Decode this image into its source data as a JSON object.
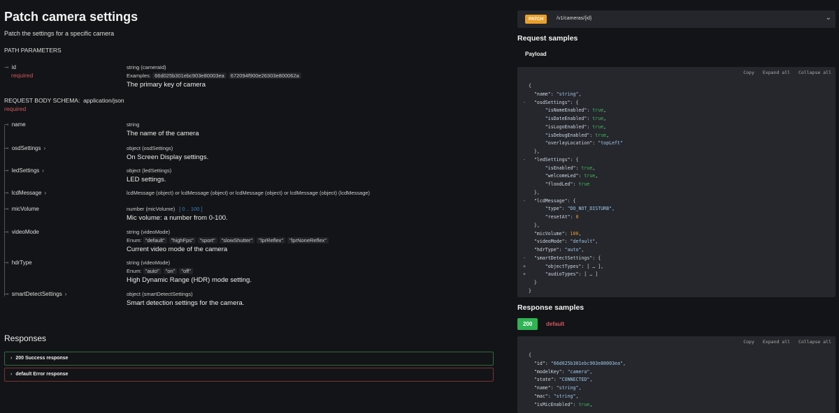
{
  "title": "Patch camera settings",
  "subtitle": "Patch the settings for a specific camera",
  "path_params_label": "PATH PARAMETERS",
  "id_param": {
    "name": "id",
    "required": "required",
    "type": "string (cameraId)",
    "examples_label": "Examples:",
    "examples": [
      "66d025b301ebc903e80003ea",
      "672094f900e26303e800062a"
    ],
    "desc": "The primary key of camera"
  },
  "body_label": "REQUEST BODY SCHEMA:",
  "body_type": "application/json",
  "body_required": "required",
  "params": [
    {
      "name": "name",
      "chev": "",
      "type": "string",
      "desc": "The name of the camera"
    },
    {
      "name": "osdSettings",
      "chev": "›",
      "type": "object (osdSettings)",
      "desc": "On Screen Display settings."
    },
    {
      "name": "ledSettings",
      "chev": "›",
      "type": "object (ledSettings)",
      "desc": "LED settings."
    },
    {
      "name": "lcdMessage",
      "chev": "›",
      "type": "lcdMessage (object) or lcdMessage (object) or lcdMessage (object) or lcdMessage (object) (lcdMessage)",
      "desc": ""
    },
    {
      "name": "micVolume",
      "chev": "",
      "type": "number (micVolume)",
      "range": "[ 0 .. 100 ]",
      "desc": "Mic volume: a number from 0-100."
    },
    {
      "name": "videoMode",
      "chev": "",
      "type": "string (videoMode)",
      "enum_label": "Enum:",
      "enum": [
        "\"default\"",
        "\"highFps\"",
        "\"sport\"",
        "\"slowShutter\"",
        "\"lprReflex\"",
        "\"lprNoneReflex\""
      ],
      "desc": "Current video mode of the camera"
    },
    {
      "name": "hdrType",
      "chev": "",
      "type": "string (videoMode)",
      "enum_label": "Enum:",
      "enum": [
        "\"auto\"",
        "\"on\"",
        "\"off\""
      ],
      "desc": "High Dynamic Range (HDR) mode setting."
    },
    {
      "name": "smartDetectSettings",
      "chev": "›",
      "type": "object (smartDetectSettings)",
      "desc": "Smart detection settings for the camera."
    }
  ],
  "responses_title": "Responses",
  "responses": [
    {
      "label": "200 Success response",
      "color": "#2f6b3f"
    },
    {
      "label": "default Error response",
      "color": "#7a3336"
    }
  ],
  "operation": {
    "method": "PATCH",
    "path": "/v1/cameras/{id}"
  },
  "request_samples_title": "Request samples",
  "payload_label": "Payload",
  "tools": [
    "Copy",
    "Expand all",
    "Collapse all"
  ],
  "request_code": [
    {
      "g": "",
      "i": 0,
      "p": "{"
    },
    {
      "g": "",
      "i": 1,
      "k": "\"name\"",
      "v": "\"string\"",
      "t": "s",
      "p": ","
    },
    {
      "g": "-",
      "i": 1,
      "k": "\"osdSettings\"",
      "p": ": {"
    },
    {
      "g": "",
      "i": 2,
      "k": "\"isNameEnabled\"",
      "v": "true",
      "t": "b",
      "p": ","
    },
    {
      "g": "",
      "i": 2,
      "k": "\"isDateEnabled\"",
      "v": "true",
      "t": "b",
      "p": ","
    },
    {
      "g": "",
      "i": 2,
      "k": "\"isLogoEnabled\"",
      "v": "true",
      "t": "b",
      "p": ","
    },
    {
      "g": "",
      "i": 2,
      "k": "\"isDebugEnabled\"",
      "v": "true",
      "t": "b",
      "p": ","
    },
    {
      "g": "",
      "i": 2,
      "k": "\"overlayLocation\"",
      "v": "\"topLeft\"",
      "t": "s",
      "p": ""
    },
    {
      "g": "",
      "i": 1,
      "p": "},"
    },
    {
      "g": "-",
      "i": 1,
      "k": "\"ledSettings\"",
      "p": ": {"
    },
    {
      "g": "",
      "i": 2,
      "k": "\"isEnabled\"",
      "v": "true",
      "t": "b",
      "p": ","
    },
    {
      "g": "",
      "i": 2,
      "k": "\"welcomeLed\"",
      "v": "true",
      "t": "b",
      "p": ","
    },
    {
      "g": "",
      "i": 2,
      "k": "\"floodLed\"",
      "v": "true",
      "t": "b",
      "p": ""
    },
    {
      "g": "",
      "i": 1,
      "p": "},"
    },
    {
      "g": "-",
      "i": 1,
      "k": "\"lcdMessage\"",
      "p": ": {"
    },
    {
      "g": "",
      "i": 2,
      "k": "\"type\"",
      "v": "\"DO_NOT_DISTURB\"",
      "t": "s",
      "p": ","
    },
    {
      "g": "",
      "i": 2,
      "k": "\"resetAt\"",
      "v": "0",
      "t": "n",
      "p": ""
    },
    {
      "g": "",
      "i": 1,
      "p": "},"
    },
    {
      "g": "",
      "i": 1,
      "k": "\"micVolume\"",
      "v": "100",
      "t": "n",
      "p": ","
    },
    {
      "g": "",
      "i": 1,
      "k": "\"videoMode\"",
      "v": "\"default\"",
      "t": "s",
      "p": ","
    },
    {
      "g": "",
      "i": 1,
      "k": "\"hdrType\"",
      "v": "\"auto\"",
      "t": "s",
      "p": ","
    },
    {
      "g": "-",
      "i": 1,
      "k": "\"smartDetectSettings\"",
      "p": ": {"
    },
    {
      "g": "+",
      "i": 2,
      "k": "\"objectTypes\"",
      "p": ": [ … ],"
    },
    {
      "g": "+",
      "i": 2,
      "k": "\"audioTypes\"",
      "p": ": [ … ]"
    },
    {
      "g": "",
      "i": 1,
      "p": "}"
    },
    {
      "g": "",
      "i": 0,
      "p": "}"
    }
  ],
  "response_samples_title": "Response samples",
  "response_tabs": [
    "200",
    "default"
  ],
  "response_code": [
    {
      "g": "",
      "i": 0,
      "p": "{"
    },
    {
      "g": "",
      "i": 1,
      "k": "\"id\"",
      "v": "\"66d025b301ebc903e80003ea\"",
      "t": "s",
      "p": ","
    },
    {
      "g": "",
      "i": 1,
      "k": "\"modelKey\"",
      "v": "\"camera\"",
      "t": "s",
      "p": ","
    },
    {
      "g": "",
      "i": 1,
      "k": "\"state\"",
      "v": "\"CONNECTED\"",
      "t": "s",
      "p": ","
    },
    {
      "g": "",
      "i": 1,
      "k": "\"name\"",
      "v": "\"string\"",
      "t": "s",
      "p": ","
    },
    {
      "g": "",
      "i": 1,
      "k": "\"mac\"",
      "v": "\"string\"",
      "t": "s",
      "p": ","
    },
    {
      "g": "",
      "i": 1,
      "k": "\"isMicEnabled\"",
      "v": "true",
      "t": "b",
      "p": ","
    }
  ]
}
